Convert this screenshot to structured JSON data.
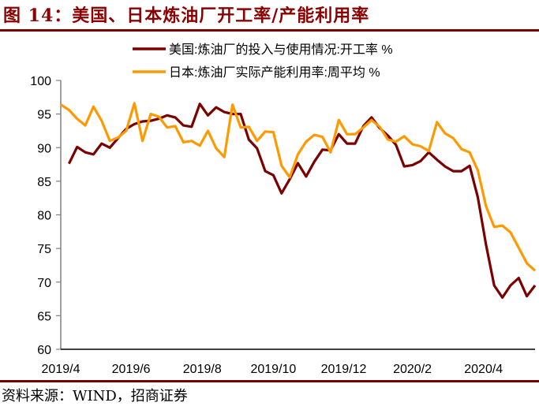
{
  "header": {
    "title": "图 14：美国、日本炼油厂开工率/产能利用率"
  },
  "footer": {
    "source": "资料来源：WIND，招商证券"
  },
  "chart_data": {
    "type": "line",
    "title": "图 14：美国、日本炼油厂开工率/产能利用率",
    "xlabel": "",
    "ylabel": "",
    "ylim": [
      60,
      100
    ],
    "yticks": [
      "100",
      "95",
      "90",
      "85",
      "80",
      "75",
      "70",
      "65",
      "60"
    ],
    "ytick_values": [
      100,
      95,
      90,
      85,
      80,
      75,
      70,
      65,
      60
    ],
    "xticks": [
      "2019/4",
      "2019/6",
      "2019/8",
      "2019/10",
      "2019/12",
      "2020/2",
      "2020/4"
    ],
    "xrange_weeks": [
      0,
      58
    ],
    "xtick_weeks": [
      0,
      8.6,
      17.3,
      26,
      34.6,
      43,
      51.7
    ],
    "grid": false,
    "legend_position": "top-right",
    "series": [
      {
        "name": "美国:炼油厂的投入与使用情况:开工率 %",
        "color": "#7B0000",
        "week_offset": 1,
        "values": [
          87.6,
          90.1,
          89.3,
          89.0,
          90.6,
          90.0,
          91.4,
          92.8,
          93.5,
          93.9,
          94.0,
          94.3,
          94.8,
          94.5,
          93.3,
          93.1,
          96.5,
          94.8,
          96.0,
          95.3,
          95.0,
          95.0,
          91.2,
          89.9,
          86.5,
          85.9,
          83.2,
          85.3,
          87.7,
          85.7,
          87.9,
          89.7,
          89.6,
          92.0,
          90.6,
          90.6,
          93.2,
          94.5,
          92.9,
          91.8,
          90.4,
          87.2,
          87.4,
          88.0,
          89.3,
          88.2,
          87.2,
          86.5,
          86.5,
          87.3,
          82.6,
          75.6,
          69.5,
          67.7,
          69.5,
          70.6,
          67.9,
          69.5
        ]
      },
      {
        "name": "日本:炼油厂实际产能利用率:周平均 %",
        "color": "#FF9900",
        "week_offset": 0,
        "values": [
          96.4,
          95.6,
          94.3,
          93.3,
          96.1,
          94.0,
          91.0,
          91.5,
          92.5,
          96.6,
          91.0,
          95.0,
          94.6,
          93.0,
          93.2,
          90.8,
          91.0,
          90.3,
          92.5,
          89.9,
          88.6,
          96.4,
          93.0,
          93.1,
          91.0,
          92.4,
          92.3,
          87.3,
          85.6,
          89.0,
          90.9,
          91.9,
          91.6,
          89.3,
          94.1,
          92.0,
          92.0,
          93.0,
          94.1,
          93.1,
          91.2,
          90.9,
          91.7,
          90.5,
          90.2,
          89.5,
          93.8,
          92.1,
          91.4,
          89.8,
          89.3,
          86.6,
          81.3,
          78.2,
          78.4,
          77.4,
          75.1,
          72.8,
          71.7
        ]
      }
    ]
  }
}
